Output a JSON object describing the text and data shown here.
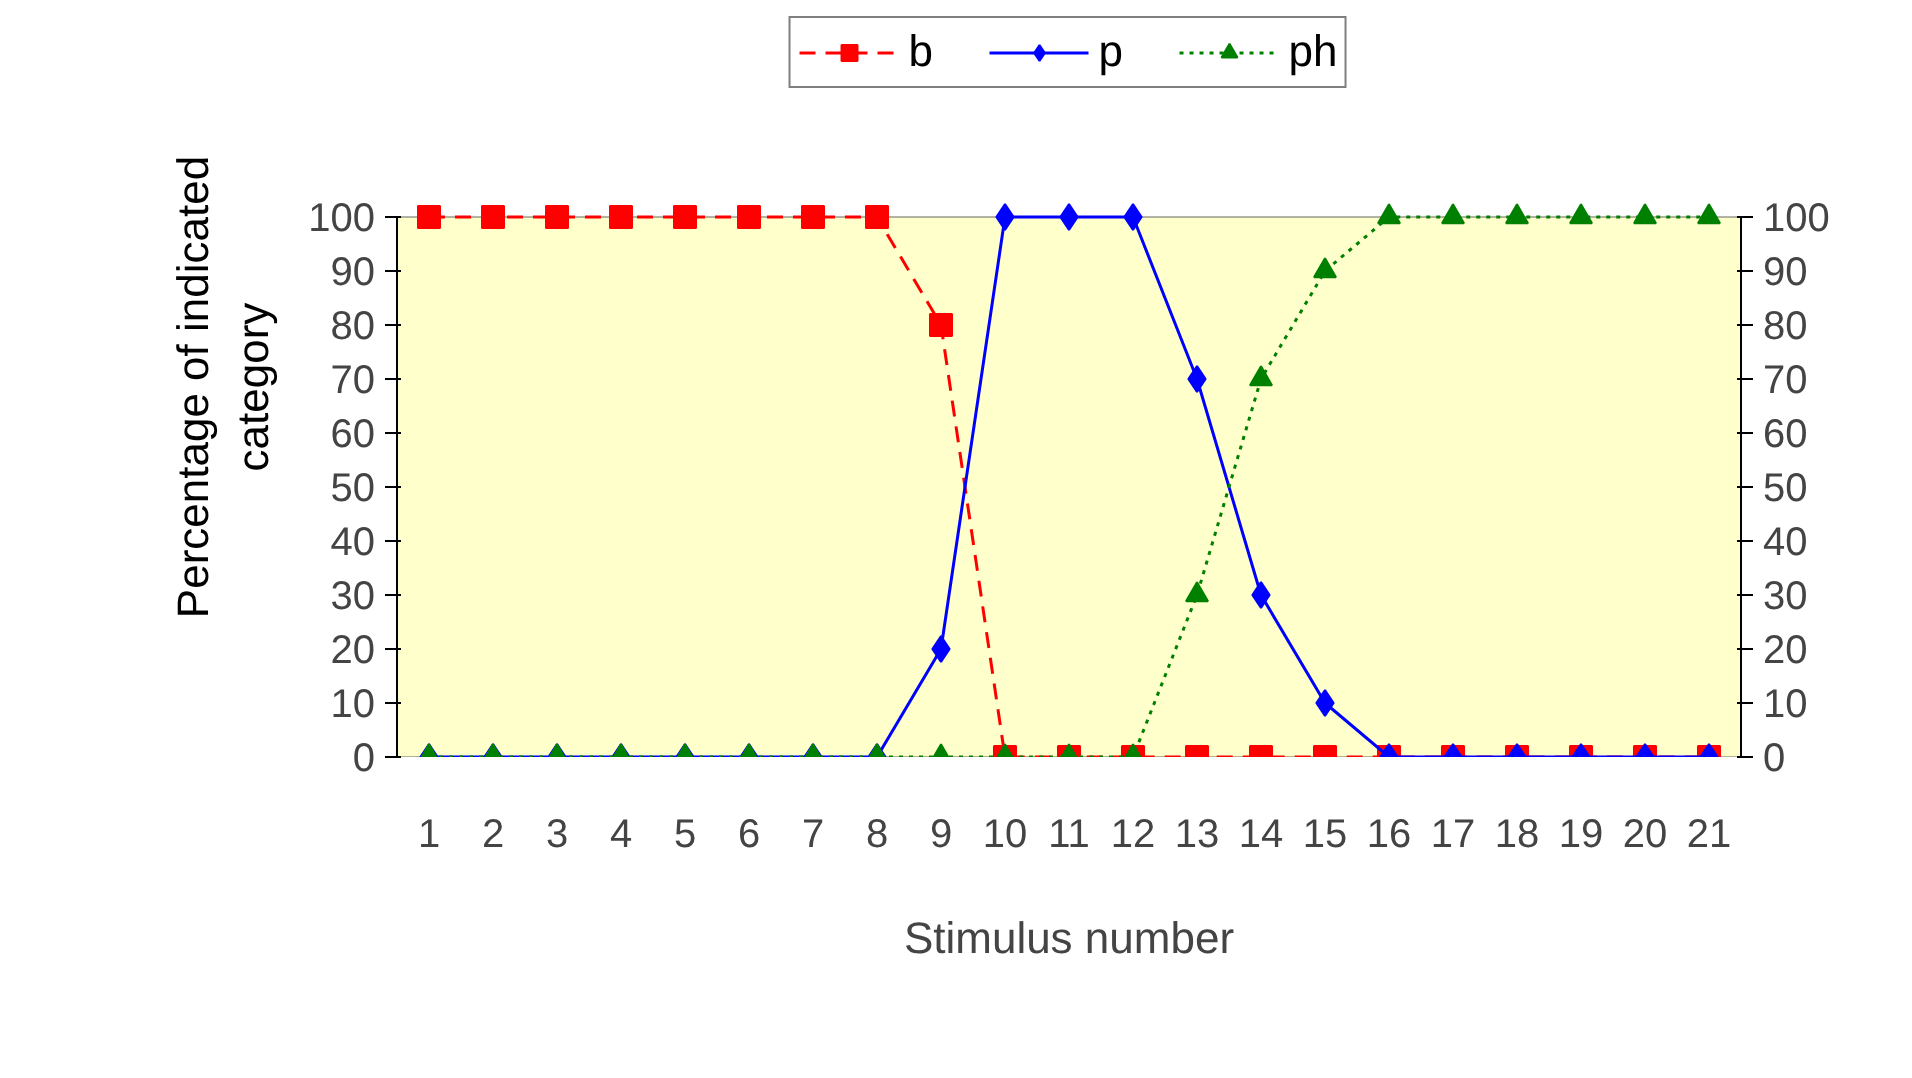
{
  "chart_data": {
    "type": "line",
    "xlabel": "Stimulus number",
    "ylabel": "Percentage of indicated category",
    "x": [
      1,
      2,
      3,
      4,
      5,
      6,
      7,
      8,
      9,
      10,
      11,
      12,
      13,
      14,
      15,
      16,
      17,
      18,
      19,
      20,
      21
    ],
    "xlim": [
      0.5,
      21.5
    ],
    "xticks": [
      1,
      2,
      3,
      4,
      5,
      6,
      7,
      8,
      9,
      10,
      11,
      12,
      13,
      14,
      15,
      16,
      17,
      18,
      19,
      20,
      21
    ],
    "ylim": [
      0,
      100
    ],
    "yticks": [
      0,
      10,
      20,
      30,
      40,
      50,
      60,
      70,
      80,
      90,
      100
    ],
    "y2lim": [
      0,
      100
    ],
    "y2ticks": [
      0,
      10,
      20,
      30,
      40,
      50,
      60,
      70,
      80,
      90,
      100
    ],
    "grid": false,
    "legend": "top",
    "series": [
      {
        "name": "b",
        "color": "#ff0000",
        "marker": "square",
        "line_style": "dashed",
        "values": [
          100,
          100,
          100,
          100,
          100,
          100,
          100,
          100,
          80,
          0,
          0,
          0,
          0,
          0,
          0,
          0,
          0,
          0,
          0,
          0,
          0
        ]
      },
      {
        "name": "p",
        "color": "#0000ff",
        "marker": "diamond",
        "line_style": "solid",
        "values": [
          0,
          0,
          0,
          0,
          0,
          0,
          0,
          0,
          20,
          100,
          100,
          100,
          70,
          30,
          10,
          0,
          0,
          0,
          0,
          0,
          0
        ]
      },
      {
        "name": "ph",
        "color": "#008000",
        "marker": "triangle",
        "line_style": "dotted",
        "values": [
          0,
          0,
          0,
          0,
          0,
          0,
          0,
          0,
          0,
          0,
          0,
          0,
          30,
          70,
          90,
          100,
          100,
          100,
          100,
          100,
          100
        ]
      }
    ]
  }
}
